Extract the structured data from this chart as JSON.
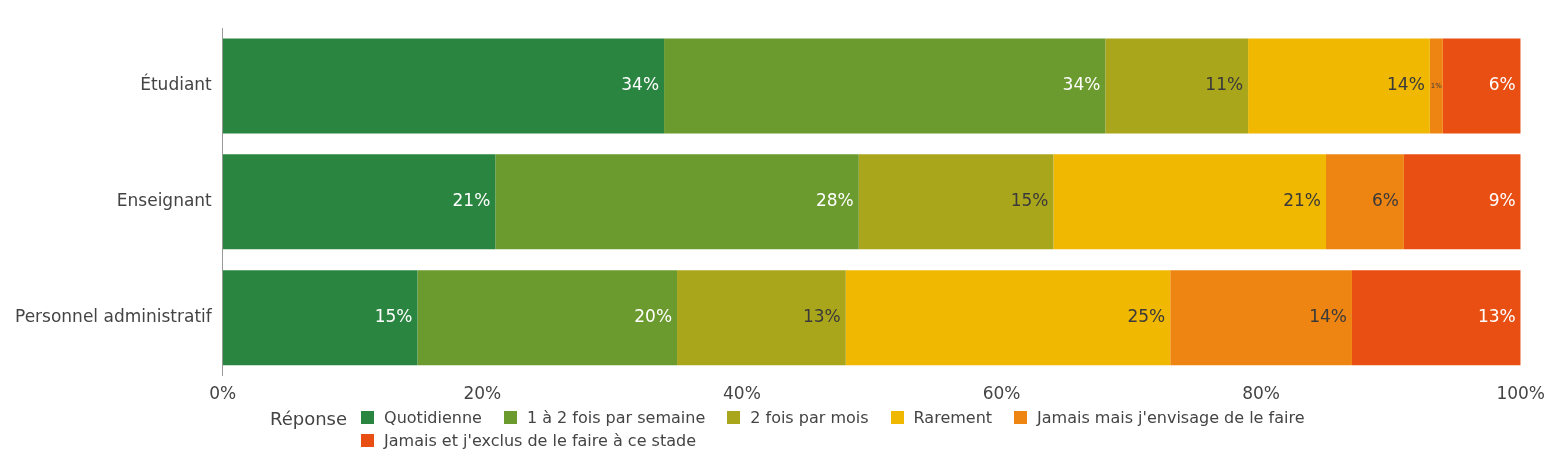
{
  "chart_data": {
    "type": "bar",
    "orientation": "horizontal",
    "stacked": true,
    "legend_title": "Réponse",
    "legend": "bottom",
    "grid": false,
    "categories": [
      "Étudiant",
      "Enseignant",
      "Personnel administratif"
    ],
    "xlim": [
      0,
      100
    ],
    "xticks": [
      {
        "value": 0,
        "label": "0%"
      },
      {
        "value": 20,
        "label": "20%"
      },
      {
        "value": 40,
        "label": "40%"
      },
      {
        "value": 60,
        "label": "60%"
      },
      {
        "value": 80,
        "label": "80%"
      },
      {
        "value": 100,
        "label": "100%"
      }
    ],
    "series": [
      {
        "name": "Quotidienne",
        "color": "#2a8540",
        "values": [
          34,
          21,
          15
        ],
        "value_labels": [
          "34%",
          "21%",
          "15%"
        ]
      },
      {
        "name": "1 à 2 fois par semaine",
        "color": "#6b9a2e",
        "values": [
          34,
          28,
          20
        ],
        "value_labels": [
          "34%",
          "28%",
          "20%"
        ]
      },
      {
        "name": "2 fois par mois",
        "color": "#aaa61c",
        "values": [
          11,
          15,
          13
        ],
        "value_labels": [
          "11%",
          "15%",
          "13%"
        ]
      },
      {
        "name": "Rarement",
        "color": "#f0b800",
        "values": [
          14,
          21,
          25
        ],
        "value_labels": [
          "14%",
          "21%",
          "25%"
        ]
      },
      {
        "name": "Jamais mais j'envisage de le faire",
        "color": "#ee8512",
        "values": [
          1,
          6,
          14
        ],
        "value_labels": [
          "1%",
          "6%",
          "14%"
        ]
      },
      {
        "name": "Jamais et j'exclus de le faire à ce stade",
        "color": "#e94f13",
        "values": [
          6,
          9,
          13
        ],
        "value_labels": [
          "6%",
          "9%",
          "13%"
        ]
      }
    ]
  }
}
